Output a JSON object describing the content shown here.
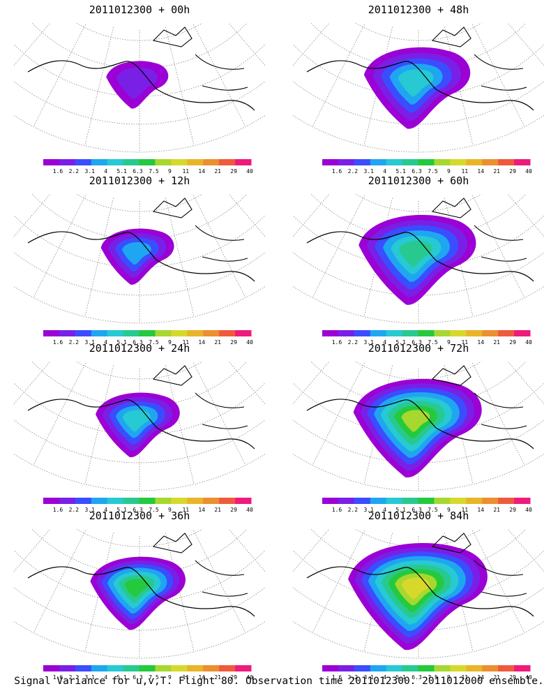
{
  "figure": {
    "caption": "Signal Variance for u,v,T. Flight 80. Observation time 2011012300. 2011012000 ensemble."
  },
  "colorbar": {
    "tick_labels": [
      "1.6",
      "2.2",
      "3.1",
      "4",
      "5.1",
      "6.3",
      "7.5",
      "9",
      "11",
      "14",
      "21",
      "29",
      "40"
    ],
    "colors": [
      "#9b00d4",
      "#7a1fe6",
      "#3a4dff",
      "#1fa6f0",
      "#27c9d3",
      "#28c98f",
      "#25c93d",
      "#a6d82f",
      "#d6d92c",
      "#e8b52a",
      "#ec8f2f",
      "#ef5a3c",
      "#ee1b7d"
    ]
  },
  "panels": [
    {
      "title": "2011012300 + 00h"
    },
    {
      "title": "2011012300 + 48h"
    },
    {
      "title": "2011012300 + 12h"
    },
    {
      "title": "2011012300 + 60h"
    },
    {
      "title": "2011012300 + 24h"
    },
    {
      "title": "2011012300 + 72h"
    },
    {
      "title": "2011012300 + 36h"
    },
    {
      "title": "2011012300 + 84h"
    }
  ],
  "chart_data": {
    "type": "heatmap",
    "title": "",
    "lead_times_hours": [
      0,
      12,
      24,
      36,
      48,
      60,
      72,
      84
    ],
    "initialization": "2011012300",
    "colorbar_levels": [
      1.6,
      2.2,
      3.1,
      4,
      5.1,
      6.3,
      7.5,
      9,
      11,
      14,
      21,
      29,
      40
    ],
    "max_level_reached": {
      "0": 2.2,
      "12": 4,
      "24": 5.1,
      "36": 7.5,
      "48": 5.1,
      "60": 6.3,
      "72": 9,
      "84": 11
    }
  }
}
